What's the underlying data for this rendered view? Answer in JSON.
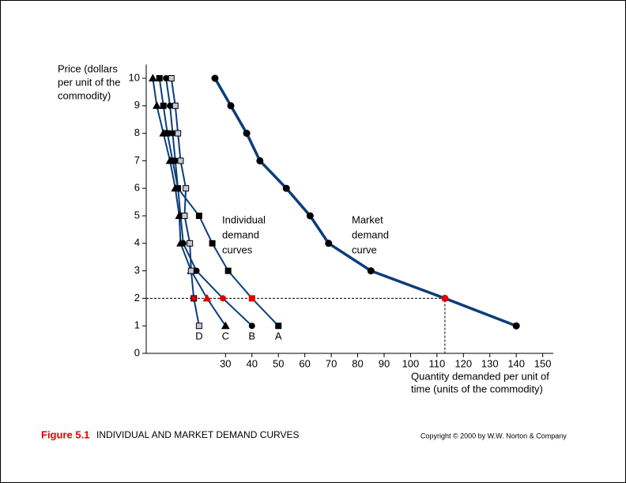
{
  "chart_data": {
    "type": "line",
    "y_label": [
      "Price (dollars",
      "per unit of the",
      "commodity)"
    ],
    "x_label": [
      "Quantity demanded per unit of",
      "time (units of the commodity)"
    ],
    "y": [
      10,
      9,
      8,
      7,
      6,
      5,
      4,
      3,
      2,
      1
    ],
    "series": [
      {
        "name": "A",
        "marker": "square",
        "color": "#0b3d7a",
        "marker_color": "#000000",
        "x": [
          5,
          6.5,
          8,
          10,
          12,
          20,
          25,
          31,
          40,
          50
        ]
      },
      {
        "name": "B",
        "marker": "circle",
        "color": "#0b3d7a",
        "marker_color": "#000000",
        "x": [
          7.5,
          9,
          10,
          11,
          12,
          13,
          14,
          19,
          29,
          40
        ]
      },
      {
        "name": "C",
        "marker": "triangle",
        "color": "#0b3d7a",
        "marker_color": "#000000",
        "x": [
          2.5,
          4,
          6.5,
          9,
          11,
          12.5,
          13,
          17,
          23,
          30
        ]
      },
      {
        "name": "D",
        "marker": "square",
        "color": "#0b3d7a",
        "marker_color": "#c8c8d8",
        "x": [
          9.5,
          11,
          12,
          13,
          15,
          14.5,
          16.5,
          17,
          18,
          20
        ]
      },
      {
        "name": "Market",
        "marker": "circle",
        "color": "#0b3d7a",
        "marker_color": "#000000",
        "thick": true,
        "x": [
          26,
          32,
          38,
          43,
          53,
          62,
          69,
          85,
          113,
          140
        ]
      }
    ],
    "highlight_y": 2,
    "highlight_color": "#e00000",
    "annotations": [
      [
        "Individual",
        "demand",
        "curves"
      ],
      [
        "Market",
        "demand",
        "curve"
      ]
    ],
    "xlim": [
      0,
      154
    ],
    "ylim": [
      0,
      10.5
    ],
    "xticks": [
      30,
      40,
      50,
      60,
      70,
      80,
      90,
      100,
      110,
      120,
      130,
      140,
      150
    ],
    "yticks": [
      0,
      1,
      2,
      3,
      4,
      5,
      6,
      7,
      8,
      9,
      10
    ],
    "caption_label": "Figure 5.1",
    "caption": "INDIVIDUAL AND MARKET DEMAND CURVES",
    "copyright": "Copyright © 2000 by W.W. Norton & Company"
  }
}
